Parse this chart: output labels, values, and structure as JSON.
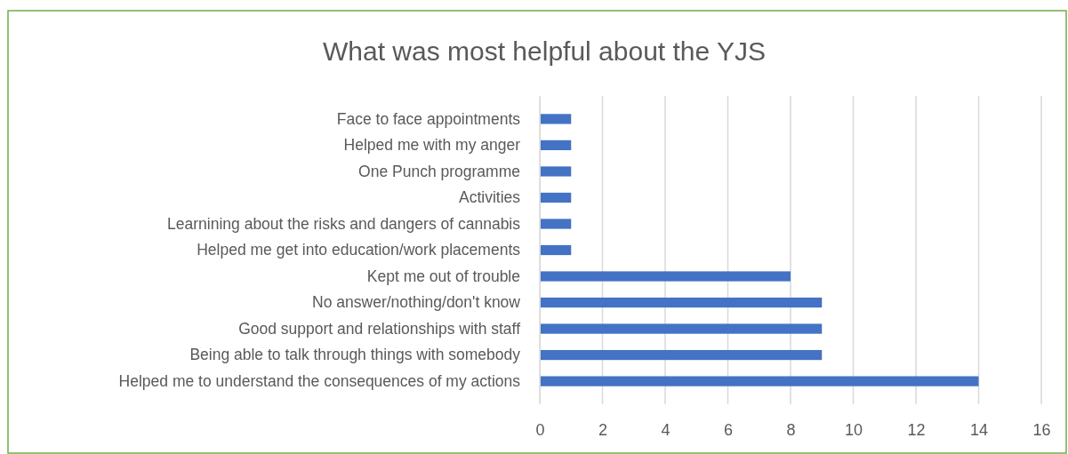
{
  "chart_data": {
    "type": "bar",
    "orientation": "horizontal",
    "title": "What was most helpful about the YJS",
    "categories": [
      "Face to face appointments",
      "Helped me with my anger",
      "One Punch programme",
      "Activities",
      "Learnining about the risks and dangers of cannabis",
      "Helped me get into education/work placements",
      "Kept me out of trouble",
      "No answer/nothing/don't know",
      "Good support and relationships with staff",
      "Being able to talk through things with somebody",
      "Helped me to understand the consequences of my actions"
    ],
    "values": [
      1,
      1,
      1,
      1,
      1,
      1,
      8,
      9,
      9,
      9,
      14
    ],
    "color": "#4472c4",
    "xlim": [
      0,
      16
    ],
    "xticks": [
      0,
      2,
      4,
      6,
      8,
      10,
      12,
      14,
      16
    ],
    "grid": "x"
  }
}
